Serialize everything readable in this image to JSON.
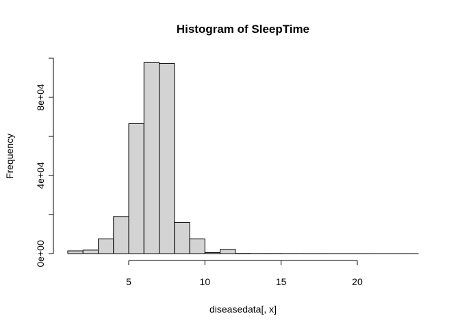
{
  "chart_data": {
    "type": "bar",
    "title": "Histogram of SleepTime",
    "xlabel": "diseasedata[, x]",
    "ylabel": "Frequency",
    "xlim": [
      1,
      24
    ],
    "ylim": [
      0,
      100000
    ],
    "xticks": [
      5,
      10,
      15,
      20
    ],
    "xtick_labels": [
      "5",
      "10",
      "15",
      "20"
    ],
    "yticks": [
      0,
      40000,
      80000
    ],
    "ytick_labels": [
      "0e+00",
      "4e+04",
      "8e+04"
    ],
    "bins": [
      {
        "start": 1,
        "end": 2,
        "count": 1400
      },
      {
        "start": 2,
        "end": 3,
        "count": 1800
      },
      {
        "start": 3,
        "end": 4,
        "count": 7500
      },
      {
        "start": 4,
        "end": 5,
        "count": 19000
      },
      {
        "start": 5,
        "end": 6,
        "count": 66500
      },
      {
        "start": 6,
        "end": 7,
        "count": 97800
      },
      {
        "start": 7,
        "end": 8,
        "count": 97400
      },
      {
        "start": 8,
        "end": 9,
        "count": 16000
      },
      {
        "start": 9,
        "end": 10,
        "count": 7500
      },
      {
        "start": 10,
        "end": 11,
        "count": 500
      },
      {
        "start": 11,
        "end": 12,
        "count": 2200
      },
      {
        "start": 12,
        "end": 13,
        "count": 100
      },
      {
        "start": 13,
        "end": 14,
        "count": 50
      },
      {
        "start": 14,
        "end": 15,
        "count": 50
      },
      {
        "start": 15,
        "end": 16,
        "count": 30
      },
      {
        "start": 16,
        "end": 17,
        "count": 20
      },
      {
        "start": 17,
        "end": 18,
        "count": 20
      },
      {
        "start": 18,
        "end": 19,
        "count": 10
      },
      {
        "start": 19,
        "end": 20,
        "count": 10
      },
      {
        "start": 20,
        "end": 21,
        "count": 10
      },
      {
        "start": 21,
        "end": 22,
        "count": 5
      },
      {
        "start": 22,
        "end": 23,
        "count": 5
      },
      {
        "start": 23,
        "end": 24,
        "count": 5
      }
    ],
    "bar_fill": "#d3d3d3",
    "bar_stroke": "#000000",
    "grid": false,
    "legend": "none"
  }
}
